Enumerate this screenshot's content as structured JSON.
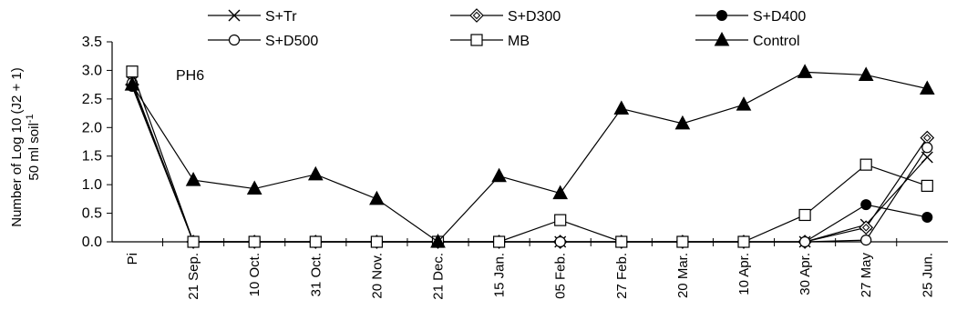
{
  "chart_data": {
    "type": "line",
    "categories": [
      "Pi",
      "21 Sep.",
      "10 Oct.",
      "31 Oct.",
      "20 Nov.",
      "21 Dec.",
      "15 Jan.",
      "05 Feb.",
      "27 Feb.",
      "20 Mar.",
      "10 Apr.",
      "30 Apr.",
      "27 May",
      "25 Jun."
    ],
    "ylabel_line1": "Number of Log 10 (J2 + 1)",
    "ylabel_line2": "50 ml soil",
    "ylabel_sup": "-1",
    "ylim": [
      0,
      3.5
    ],
    "yticks": [
      0.0,
      0.5,
      1.0,
      1.5,
      2.0,
      2.5,
      3.0,
      3.5
    ],
    "annotation": "PH6",
    "legend_position": "top",
    "series": [
      {
        "name": "S+Tr",
        "marker": "x",
        "values": [
          2.8,
          0,
          0,
          0,
          0,
          0,
          0,
          0,
          0,
          0,
          0,
          0,
          0.3,
          1.48
        ]
      },
      {
        "name": "S+D300",
        "marker": "diamond",
        "values": [
          2.75,
          0,
          0,
          0,
          0,
          0,
          0,
          0,
          0,
          0,
          0,
          0,
          0.25,
          1.82
        ]
      },
      {
        "name": "S+D400",
        "marker": "filled-circle",
        "values": [
          2.72,
          0,
          0,
          0,
          0,
          0,
          0,
          0,
          0,
          0,
          0,
          0,
          0.65,
          0.43
        ]
      },
      {
        "name": "S+D500",
        "marker": "open-circle",
        "values": [
          2.78,
          0,
          0,
          0,
          0,
          0,
          0,
          0,
          0,
          0,
          0,
          0,
          0.03,
          1.65
        ]
      },
      {
        "name": "MB",
        "marker": "open-square",
        "values": [
          2.98,
          0,
          0,
          0,
          0,
          0,
          0,
          0.38,
          0,
          0,
          0,
          0.47,
          1.35,
          0.98
        ]
      },
      {
        "name": "Control",
        "marker": "filled-triangle",
        "values": [
          2.75,
          1.08,
          0.93,
          1.18,
          0.75,
          0,
          1.15,
          0.85,
          2.33,
          2.07,
          2.4,
          2.97,
          2.92,
          2.68
        ]
      }
    ]
  }
}
